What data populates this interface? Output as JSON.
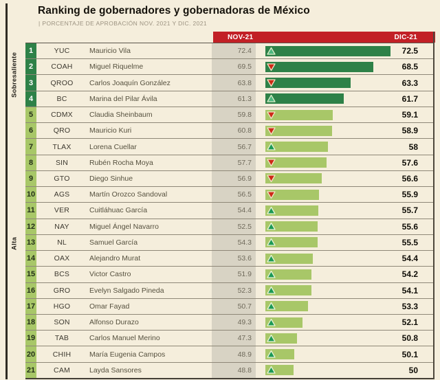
{
  "colors": {
    "bg_cream": "#f5eedc",
    "strip_gray": "#d8d3c4",
    "header_red": "#c22026",
    "dark_green": "#2e8148",
    "light_green": "#a8c768",
    "up_green": "#1d9a56",
    "down_red": "#cd2a17"
  },
  "chart_data": {
    "type": "bar",
    "orientation": "horizontal",
    "title": "Ranking de gobernadores y gobernadoras de México",
    "subtitle": "| PORCENTAJE DE APROBACIÓN NOV. 2021 Y DIC. 2021",
    "series_labels": [
      "NOV-21",
      "DIC-21"
    ],
    "bar_value_series": "DIC-21",
    "bar_value_window": [
      43.4,
      73.8
    ],
    "legend_position": "none",
    "grid": false,
    "tiers": [
      {
        "label": "Sobresaliente",
        "ranks": [
          1,
          4
        ]
      },
      {
        "label": "Alta",
        "ranks": [
          5,
          21
        ]
      }
    ],
    "rows": [
      {
        "rank": 1,
        "state": "YUC",
        "governor": "Mauricio Vila",
        "nov": 72.4,
        "trend": "up",
        "dic": 72.5,
        "tier": "sobresaliente"
      },
      {
        "rank": 2,
        "state": "COAH",
        "governor": "Miguel Riquelme",
        "nov": 69.5,
        "trend": "down",
        "dic": 68.5,
        "tier": "sobresaliente"
      },
      {
        "rank": 3,
        "state": "QROO",
        "governor": "Carlos Joaquín González",
        "nov": 63.8,
        "trend": "down",
        "dic": 63.3,
        "tier": "sobresaliente"
      },
      {
        "rank": 4,
        "state": "BC",
        "governor": "Marina del Pilar Ávila",
        "nov": 61.3,
        "trend": "up",
        "dic": 61.7,
        "tier": "sobresaliente"
      },
      {
        "rank": 5,
        "state": "CDMX",
        "governor": "Claudia Sheinbaum",
        "nov": 59.8,
        "trend": "down",
        "dic": 59.1,
        "tier": "alta"
      },
      {
        "rank": 6,
        "state": "QRO",
        "governor": "Mauricio Kuri",
        "nov": 60.8,
        "trend": "down",
        "dic": 58.9,
        "tier": "alta"
      },
      {
        "rank": 7,
        "state": "TLAX",
        "governor": "Lorena Cuellar",
        "nov": 56.7,
        "trend": "up",
        "dic": 58,
        "tier": "alta"
      },
      {
        "rank": 8,
        "state": "SIN",
        "governor": "Rubén Rocha Moya",
        "nov": 57.7,
        "trend": "down",
        "dic": 57.6,
        "tier": "alta"
      },
      {
        "rank": 9,
        "state": "GTO",
        "governor": "Diego Sinhue",
        "nov": 56.9,
        "trend": "down",
        "dic": 56.6,
        "tier": "alta"
      },
      {
        "rank": 10,
        "state": "AGS",
        "governor": "Martín Orozco Sandoval",
        "nov": 56.5,
        "trend": "down",
        "dic": 55.9,
        "tier": "alta"
      },
      {
        "rank": 11,
        "state": "VER",
        "governor": "Cuitláhuac García",
        "nov": 54.4,
        "trend": "up",
        "dic": 55.7,
        "tier": "alta"
      },
      {
        "rank": 12,
        "state": "NAY",
        "governor": "Miguel Ángel Navarro",
        "nov": 52.5,
        "trend": "up",
        "dic": 55.6,
        "tier": "alta"
      },
      {
        "rank": 13,
        "state": "NL",
        "governor": "Samuel García",
        "nov": 54.3,
        "trend": "up",
        "dic": 55.5,
        "tier": "alta"
      },
      {
        "rank": 14,
        "state": "OAX",
        "governor": "Alejandro Murat",
        "nov": 53.6,
        "trend": "up",
        "dic": 54.4,
        "tier": "alta"
      },
      {
        "rank": 15,
        "state": "BCS",
        "governor": "Victor Castro",
        "nov": 51.9,
        "trend": "up",
        "dic": 54.2,
        "tier": "alta"
      },
      {
        "rank": 16,
        "state": "GRO",
        "governor": "Evelyn Salgado Pineda",
        "nov": 52.3,
        "trend": "up",
        "dic": 54.1,
        "tier": "alta"
      },
      {
        "rank": 17,
        "state": "HGO",
        "governor": "Omar Fayad",
        "nov": 50.7,
        "trend": "up",
        "dic": 53.3,
        "tier": "alta"
      },
      {
        "rank": 18,
        "state": "SON",
        "governor": "Alfonso Durazo",
        "nov": 49.3,
        "trend": "up",
        "dic": 52.1,
        "tier": "alta"
      },
      {
        "rank": 19,
        "state": "TAB",
        "governor": "Carlos Manuel Merino",
        "nov": 47.3,
        "trend": "up",
        "dic": 50.8,
        "tier": "alta"
      },
      {
        "rank": 20,
        "state": "CHIH",
        "governor": "María Eugenia Campos",
        "nov": 48.9,
        "trend": "up",
        "dic": 50.1,
        "tier": "alta"
      },
      {
        "rank": 21,
        "state": "CAM",
        "governor": "Layda Sansores",
        "nov": 48.8,
        "trend": "up",
        "dic": 50,
        "tier": "alta"
      }
    ]
  }
}
